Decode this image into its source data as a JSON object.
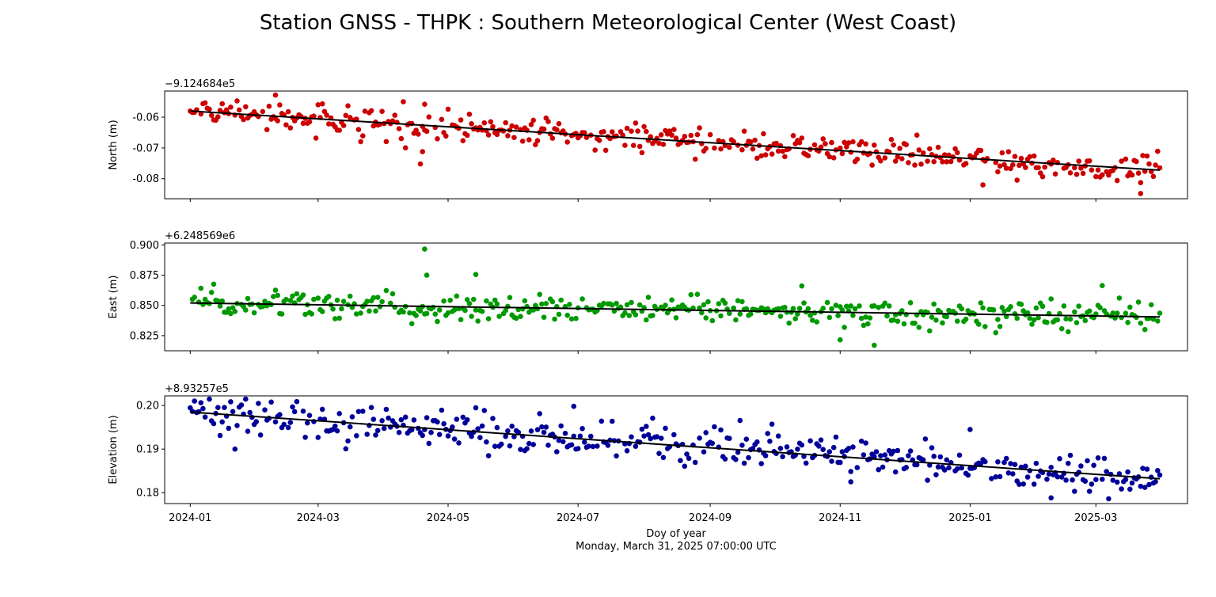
{
  "title": "Station GNSS - THPK : Southern Meteorological Center (West Coast)",
  "xlabel": "Doy of year",
  "timestamp": "Monday, March 31, 2025 07:00:00 UTC",
  "x_tick_labels": [
    "2024-01",
    "2024-03",
    "2024-05",
    "2024-07",
    "2024-09",
    "2024-11",
    "2025-01",
    "2025-03"
  ],
  "colors": {
    "north": "#cc0000",
    "east": "#009900",
    "elevation": "#000099",
    "trend": "#000000"
  },
  "chart_data": [
    {
      "type": "scatter",
      "name": "north",
      "ylabel": "North (m)",
      "offset_label": "−9.124684e5",
      "yticks": [
        "-0.06",
        "-0.07",
        "-0.08"
      ],
      "ytick_values": [
        -0.06,
        -0.07,
        -0.08
      ],
      "ylim": [
        -0.0865,
        -0.0515
      ],
      "x_start": "2024-01-01",
      "x_end": "2025-03-31",
      "trend": {
        "start": -0.058,
        "end": -0.0772
      },
      "noise": 0.0022,
      "outliers": [
        {
          "x": "2024-04-18",
          "y": -0.0752
        },
        {
          "x": "2024-04-19",
          "y": -0.0712
        },
        {
          "x": "2024-04-20",
          "y": -0.0558
        },
        {
          "x": "2024-02-10",
          "y": -0.0528
        },
        {
          "x": "2025-01-07",
          "y": -0.082
        },
        {
          "x": "2025-03-22",
          "y": -0.0848
        }
      ]
    },
    {
      "type": "scatter",
      "name": "east",
      "ylabel": "East (m)",
      "offset_label": "+6.248569e6",
      "yticks": [
        "0.900",
        "0.875",
        "0.850",
        "0.825"
      ],
      "ytick_values": [
        0.9,
        0.875,
        0.85,
        0.825
      ],
      "ylim": [
        0.8125,
        0.9015
      ],
      "x_start": "2024-01-01",
      "x_end": "2025-03-31",
      "trend": {
        "start": 0.852,
        "end": 0.8405
      },
      "noise": 0.0055,
      "outliers": [
        {
          "x": "2024-04-20",
          "y": 0.8965
        },
        {
          "x": "2024-04-21",
          "y": 0.875
        },
        {
          "x": "2024-05-14",
          "y": 0.8755
        },
        {
          "x": "2024-11-01",
          "y": 0.8215
        },
        {
          "x": "2024-11-17",
          "y": 0.817
        },
        {
          "x": "2024-10-14",
          "y": 0.866
        }
      ]
    },
    {
      "type": "scatter",
      "name": "elevation",
      "ylabel": "Elevation (m)",
      "offset_label": "+8.93257e5",
      "yticks": [
        "0.20",
        "0.19",
        "0.18"
      ],
      "ytick_values": [
        0.2,
        0.19,
        0.18
      ],
      "ylim": [
        0.1775,
        0.2022
      ],
      "x_start": "2024-01-01",
      "x_end": "2025-03-31",
      "trend": {
        "start": 0.1985,
        "end": 0.1832
      },
      "noise": 0.0022,
      "outliers": [
        {
          "x": "2024-01-03",
          "y": 0.201
        },
        {
          "x": "2024-06-29",
          "y": 0.1998
        },
        {
          "x": "2025-01-01",
          "y": 0.1945
        },
        {
          "x": "2025-02-08",
          "y": 0.1788
        },
        {
          "x": "2024-11-06",
          "y": 0.1825
        }
      ]
    }
  ]
}
